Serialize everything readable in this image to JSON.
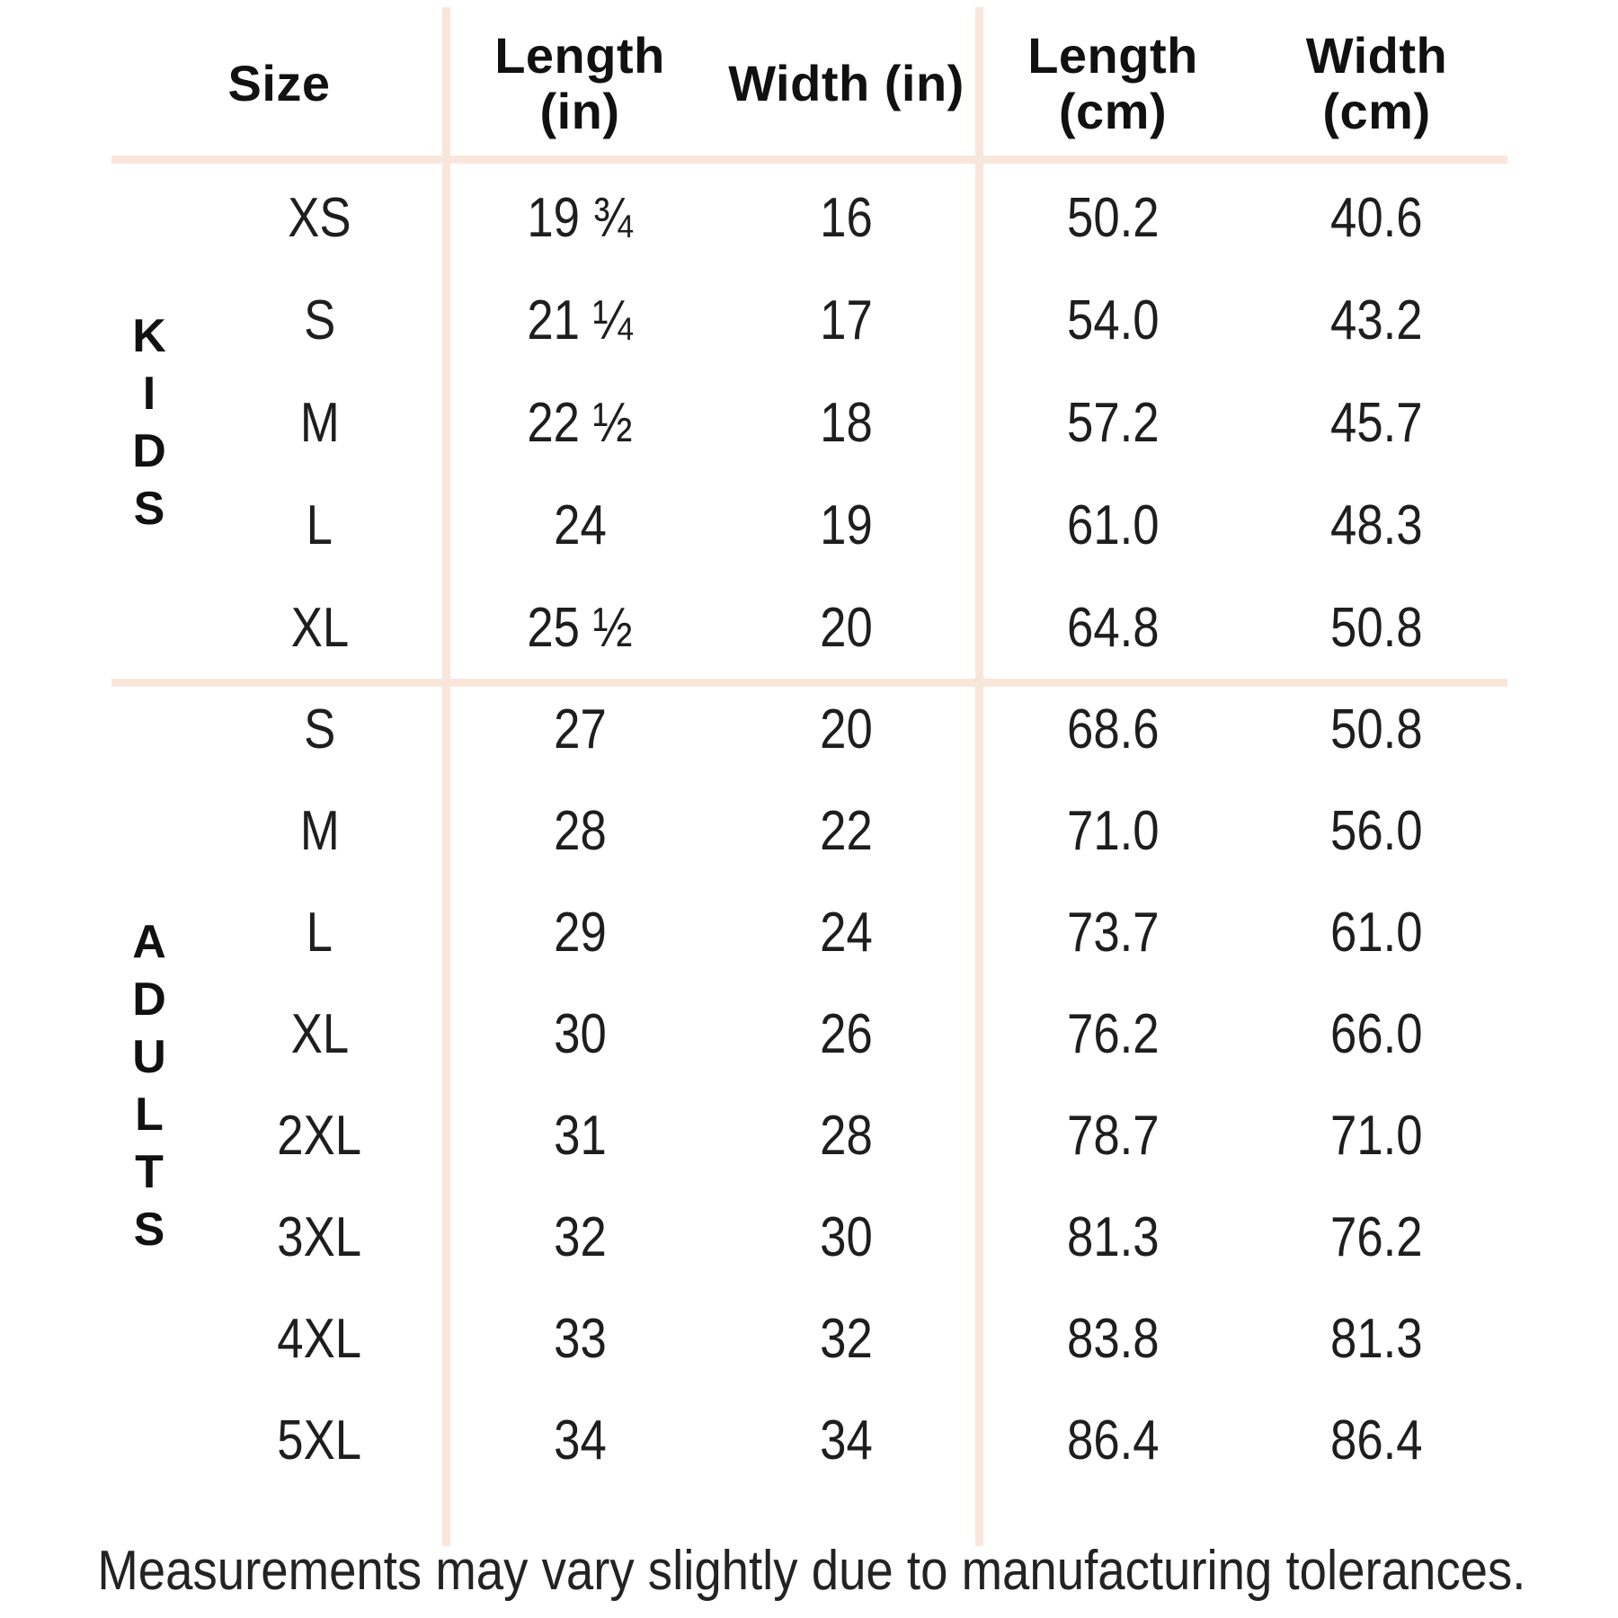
{
  "colors": {
    "background": "#ffffff",
    "divider_line": "#f9e6db",
    "header_text": "#111111",
    "data_text": "#1e1e1e"
  },
  "table": {
    "headers": [
      {
        "label": "Size",
        "lines": [
          "Size"
        ]
      },
      {
        "label": "Length (in)",
        "lines": [
          "Length",
          "(in)"
        ]
      },
      {
        "label": "Width (in)",
        "lines": [
          "Width (in)"
        ]
      },
      {
        "label": "Length (cm)",
        "lines": [
          "Length",
          "(cm)"
        ]
      },
      {
        "label": "Width (cm)",
        "lines": [
          "Width",
          "(cm)"
        ]
      }
    ],
    "sections": [
      {
        "group": "KIDS",
        "group_letters": [
          "K",
          "I",
          "D",
          "S"
        ],
        "rows": [
          {
            "size": "XS",
            "length_in": "19 ¾",
            "width_in": "16",
            "length_cm": "50.2",
            "width_cm": "40.6"
          },
          {
            "size": "S",
            "length_in": "21 ¼",
            "width_in": "17",
            "length_cm": "54.0",
            "width_cm": "43.2"
          },
          {
            "size": "M",
            "length_in": "22 ½",
            "width_in": "18",
            "length_cm": "57.2",
            "width_cm": "45.7"
          },
          {
            "size": "L",
            "length_in": "24",
            "width_in": "19",
            "length_cm": "61.0",
            "width_cm": "48.3"
          },
          {
            "size": "XL",
            "length_in": "25 ½",
            "width_in": "20",
            "length_cm": "64.8",
            "width_cm": "50.8"
          }
        ]
      },
      {
        "group": "ADULTS",
        "group_letters": [
          "A",
          "D",
          "U",
          "L",
          "T",
          "S"
        ],
        "rows": [
          {
            "size": "S",
            "length_in": "27",
            "width_in": "20",
            "length_cm": "68.6",
            "width_cm": "50.8"
          },
          {
            "size": "M",
            "length_in": "28",
            "width_in": "22",
            "length_cm": "71.0",
            "width_cm": "56.0"
          },
          {
            "size": "L",
            "length_in": "29",
            "width_in": "24",
            "length_cm": "73.7",
            "width_cm": "61.0"
          },
          {
            "size": "XL",
            "length_in": "30",
            "width_in": "26",
            "length_cm": "76.2",
            "width_cm": "66.0"
          },
          {
            "size": "2XL",
            "length_in": "31",
            "width_in": "28",
            "length_cm": "78.7",
            "width_cm": "71.0"
          },
          {
            "size": "3XL",
            "length_in": "32",
            "width_in": "30",
            "length_cm": "81.3",
            "width_cm": "76.2"
          },
          {
            "size": "4XL",
            "length_in": "33",
            "width_in": "32",
            "length_cm": "83.8",
            "width_cm": "81.3"
          },
          {
            "size": "5XL",
            "length_in": "34",
            "width_in": "34",
            "length_cm": "86.4",
            "width_cm": "86.4"
          }
        ]
      }
    ]
  },
  "footer": {
    "note": "Measurements may vary slightly due to manufacturing tolerances."
  }
}
